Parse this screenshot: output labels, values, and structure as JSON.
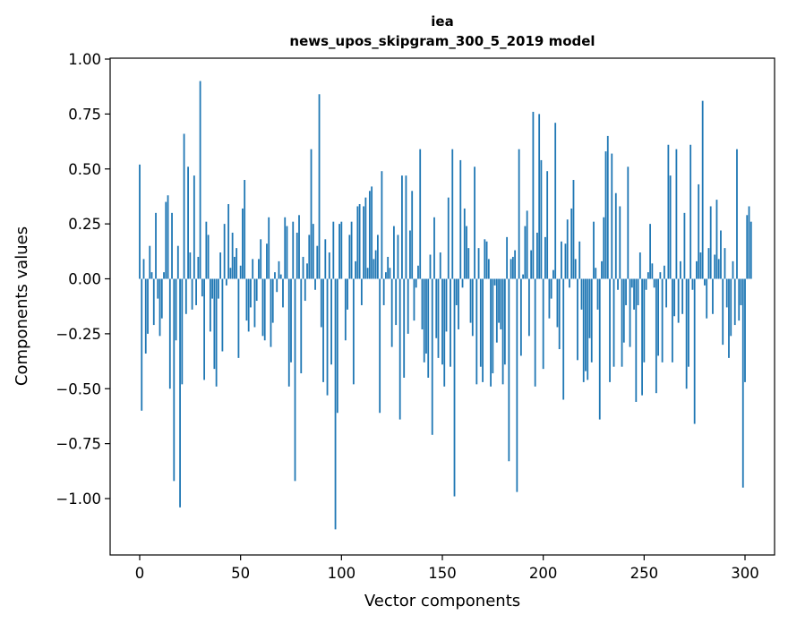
{
  "chart_data": {
    "type": "bar",
    "title_line1": "iea",
    "title_line2": "news_upos_skipgram_300_5_2019 model",
    "xlabel": "Vector components",
    "ylabel": "Components values",
    "xlim": [
      -10,
      314
    ],
    "ylim": [
      -1.25,
      1.0
    ],
    "xticks": [
      0,
      50,
      100,
      150,
      200,
      250,
      300
    ],
    "yticks": [
      1.0,
      0.75,
      0.5,
      0.25,
      0.0,
      -0.25,
      -0.5,
      -0.75,
      -1.0
    ],
    "xtick_labels": [
      "0",
      "50",
      "100",
      "150",
      "200",
      "250",
      "300"
    ],
    "ytick_labels": [
      "1.00",
      "0.75",
      "0.50",
      "0.25",
      "0.00",
      "−0.25",
      "−0.50",
      "−0.75",
      "−1.00"
    ],
    "bar_color": "#1f77b4",
    "values": [
      0.52,
      -0.6,
      0.09,
      -0.34,
      -0.25,
      0.15,
      0.03,
      -0.21,
      0.3,
      -0.09,
      -0.26,
      -0.18,
      0.03,
      0.35,
      0.38,
      -0.5,
      0.3,
      -0.92,
      -0.28,
      0.15,
      -1.04,
      -0.48,
      0.66,
      -0.16,
      0.51,
      0.12,
      -0.14,
      0.47,
      -0.12,
      0.1,
      0.9,
      -0.08,
      -0.46,
      0.26,
      0.2,
      -0.24,
      -0.09,
      -0.41,
      -0.49,
      -0.09,
      0.12,
      -0.33,
      0.25,
      -0.03,
      0.34,
      0.05,
      0.21,
      0.1,
      0.14,
      -0.36,
      0.06,
      0.32,
      0.45,
      -0.19,
      -0.24,
      -0.13,
      0.09,
      -0.22,
      -0.1,
      0.09,
      0.18,
      -0.26,
      -0.28,
      0.16,
      0.28,
      -0.31,
      -0.2,
      0.03,
      -0.06,
      0.08,
      0.02,
      -0.13,
      0.28,
      0.24,
      -0.49,
      -0.38,
      0.26,
      -0.92,
      0.21,
      0.29,
      -0.43,
      0.1,
      -0.1,
      0.07,
      0.2,
      0.59,
      0.25,
      -0.05,
      0.15,
      0.84,
      -0.22,
      -0.47,
      0.18,
      -0.53,
      0.12,
      -0.39,
      0.26,
      -1.14,
      -0.61,
      0.25,
      0.26,
      0.0,
      -0.28,
      -0.14,
      0.2,
      0.26,
      -0.48,
      0.08,
      0.33,
      0.34,
      -0.12,
      0.33,
      0.37,
      0.05,
      0.4,
      0.42,
      0.09,
      0.13,
      0.2,
      -0.61,
      0.49,
      -0.12,
      0.03,
      0.1,
      0.05,
      -0.31,
      0.24,
      -0.21,
      0.2,
      -0.64,
      0.47,
      -0.45,
      0.47,
      -0.25,
      0.22,
      0.4,
      -0.19,
      -0.04,
      0.06,
      0.59,
      -0.23,
      -0.38,
      -0.34,
      -0.45,
      0.11,
      -0.71,
      0.28,
      -0.27,
      -0.36,
      0.12,
      -0.39,
      -0.49,
      -0.24,
      0.37,
      -0.4,
      0.59,
      -0.99,
      -0.12,
      -0.23,
      0.54,
      -0.04,
      0.32,
      0.24,
      0.14,
      -0.2,
      -0.26,
      0.51,
      -0.48,
      0.14,
      -0.4,
      -0.47,
      0.18,
      0.17,
      0.09,
      -0.49,
      -0.43,
      -0.03,
      -0.29,
      -0.2,
      -0.23,
      -0.48,
      -0.39,
      0.19,
      -0.83,
      0.09,
      0.1,
      0.13,
      -0.97,
      0.59,
      -0.35,
      0.02,
      0.24,
      0.31,
      -0.26,
      0.13,
      0.76,
      -0.49,
      0.21,
      0.75,
      0.54,
      -0.41,
      0.19,
      0.49,
      -0.18,
      -0.09,
      0.04,
      0.71,
      -0.22,
      -0.32,
      0.17,
      -0.55,
      0.16,
      0.27,
      -0.04,
      0.32,
      0.45,
      0.09,
      -0.37,
      0.17,
      -0.14,
      -0.47,
      -0.42,
      -0.46,
      -0.27,
      -0.38,
      0.26,
      0.05,
      -0.14,
      -0.64,
      0.08,
      0.28,
      0.58,
      0.65,
      -0.47,
      0.57,
      -0.4,
      0.39,
      -0.05,
      0.33,
      -0.4,
      -0.29,
      -0.12,
      0.51,
      -0.31,
      -0.04,
      -0.14,
      -0.56,
      -0.12,
      0.12,
      -0.53,
      -0.38,
      -0.05,
      0.03,
      0.25,
      0.07,
      -0.04,
      -0.52,
      -0.35,
      0.03,
      -0.38,
      0.06,
      -0.13,
      0.61,
      0.47,
      -0.38,
      -0.17,
      0.59,
      -0.2,
      0.08,
      -0.16,
      0.3,
      -0.5,
      -0.4,
      0.61,
      -0.05,
      -0.66,
      0.08,
      0.43,
      0.12,
      0.81,
      -0.03,
      -0.18,
      0.14,
      0.33,
      -0.16,
      0.11,
      0.36,
      0.09,
      0.22,
      -0.3,
      0.14,
      -0.13,
      -0.36,
      -0.26,
      0.08,
      -0.21,
      0.59,
      -0.19,
      -0.12,
      -0.95,
      -0.47,
      0.29,
      0.33,
      0.26
    ]
  }
}
